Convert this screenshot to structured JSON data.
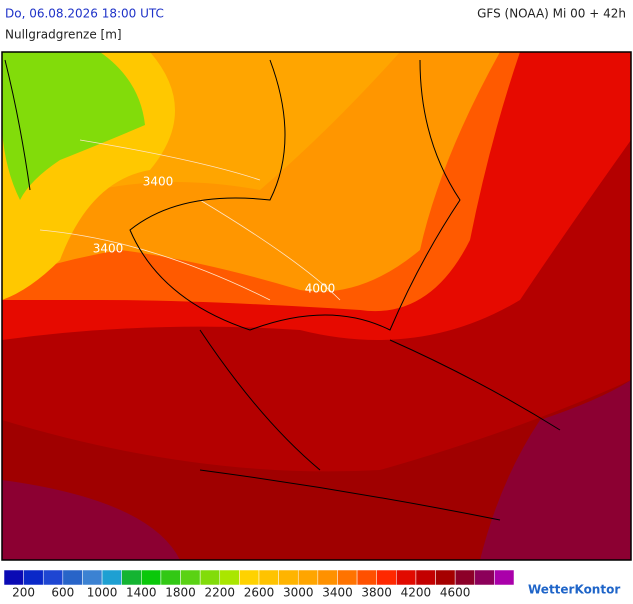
{
  "header": {
    "datetime": "Do, 06.08.2026 18:00 UTC",
    "model": "GFS (NOAA) Mi 00 + 42h",
    "parameter": "Nullgradgrenze [m]"
  },
  "map": {
    "contour_labels": [
      "3400",
      "3400",
      "4000"
    ]
  },
  "legend": {
    "colors": [
      "#0a0ab4",
      "#0a28c8",
      "#1e46d2",
      "#2864c8",
      "#3c82d2",
      "#1ea0d2",
      "#14b432",
      "#0ac80a",
      "#32c814",
      "#5ad214",
      "#82dc0a",
      "#aae600",
      "#ffd200",
      "#ffc300",
      "#ffb400",
      "#ffa500",
      "#ff9100",
      "#ff7300",
      "#ff5000",
      "#ff2800",
      "#e10a00",
      "#c30000",
      "#a50000",
      "#8c0028",
      "#8c005a",
      "#aa00aa"
    ],
    "labels": [
      "200",
      "600",
      "1000",
      "1400",
      "1800",
      "2200",
      "2600",
      "3000",
      "3400",
      "3800",
      "4200",
      "4600"
    ]
  },
  "logo": "WetterKontor"
}
